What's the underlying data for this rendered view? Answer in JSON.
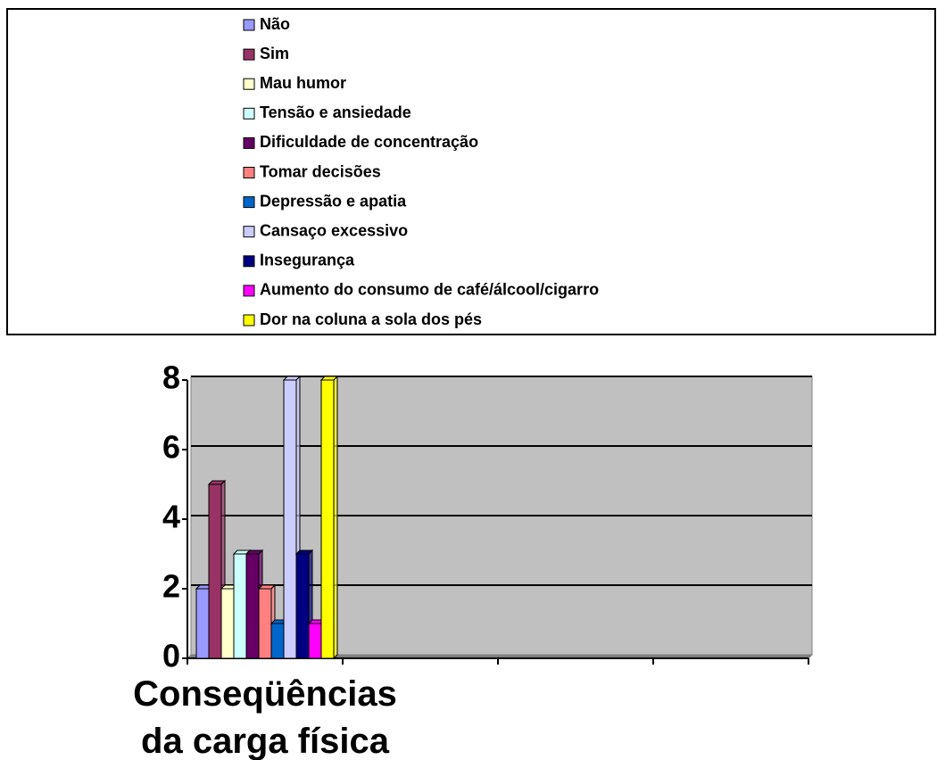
{
  "chart_data": {
    "type": "bar",
    "categories": [
      "Conseqüências da carga física",
      null,
      null,
      null
    ],
    "series": [
      {
        "name": "Não",
        "color": "#9999ff",
        "values": [
          2,
          null,
          null,
          null
        ]
      },
      {
        "name": "Sim",
        "color": "#993366",
        "values": [
          5,
          null,
          null,
          null
        ]
      },
      {
        "name": "Mau humor",
        "color": "#ffffcc",
        "values": [
          2,
          null,
          null,
          null
        ]
      },
      {
        "name": "Tensão e ansiedade",
        "color": "#ccffff",
        "values": [
          3,
          null,
          null,
          null
        ]
      },
      {
        "name": "Dificuldade de concentração",
        "color": "#660066",
        "values": [
          3,
          null,
          null,
          null
        ]
      },
      {
        "name": "Tomar decisões",
        "color": "#ff8080",
        "values": [
          2,
          null,
          null,
          null
        ]
      },
      {
        "name": "Depressão e apatia",
        "color": "#0066cc",
        "values": [
          1,
          null,
          null,
          null
        ]
      },
      {
        "name": "Cansaço excessivo",
        "color": "#ccccff",
        "values": [
          8,
          null,
          null,
          null
        ]
      },
      {
        "name": "Insegurança",
        "color": "#000080",
        "values": [
          3,
          null,
          null,
          null
        ]
      },
      {
        "name": "Aumento do consumo de café/álcool/cigarro",
        "color": "#ff00ff",
        "values": [
          1,
          null,
          null,
          null
        ]
      },
      {
        "name": "Dor na coluna a sola dos pés",
        "color": "#ffff00",
        "values": [
          8,
          null,
          null,
          null
        ]
      }
    ],
    "ylim": [
      0,
      8
    ],
    "yticks": [
      0,
      2,
      4,
      6,
      8
    ],
    "grid": true
  }
}
